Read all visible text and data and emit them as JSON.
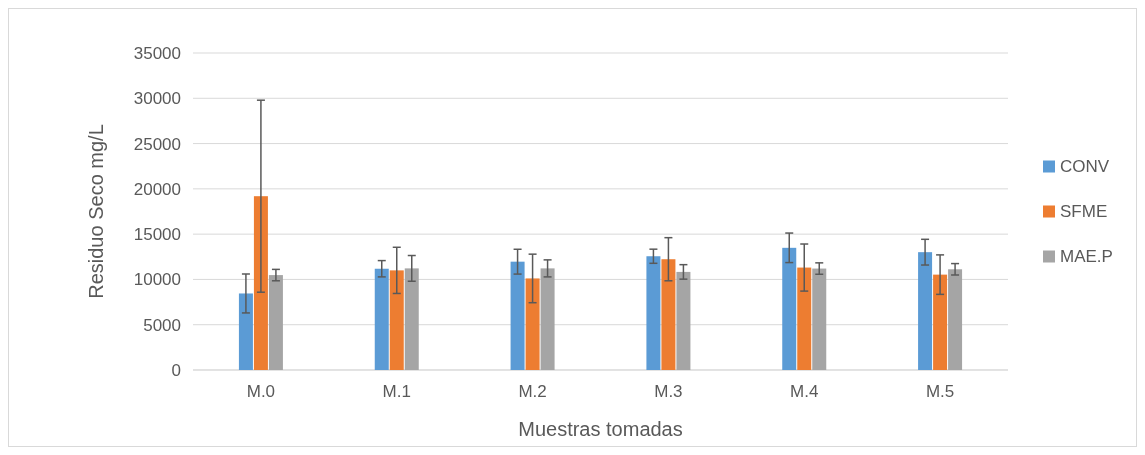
{
  "chart_data": {
    "type": "bar",
    "xlabel": "Muestras tomadas",
    "ylabel": "Residuo Seco mg/L",
    "categories": [
      "M.0",
      "M.1",
      "M.2",
      "M.3",
      "M.4",
      "M.5"
    ],
    "series": [
      {
        "name": "CONV",
        "color": "#5b9bd5",
        "values": [
          8450,
          11180,
          11960,
          12560,
          13490,
          13010
        ],
        "errors": [
          2150,
          900,
          1370,
          780,
          1630,
          1420
        ]
      },
      {
        "name": "SFME",
        "color": "#ed7d31",
        "values": [
          19190,
          11000,
          10110,
          12230,
          11310,
          10530
        ],
        "errors": [
          10600,
          2550,
          2680,
          2380,
          2600,
          2180
        ]
      },
      {
        "name": "MAE.P",
        "color": "#a5a5a5",
        "values": [
          10480,
          11220,
          11220,
          10830,
          11200,
          11120
        ],
        "errors": [
          630,
          1420,
          940,
          800,
          630,
          630
        ]
      }
    ],
    "ylim": [
      0,
      35000
    ],
    "yticks": [
      0,
      5000,
      10000,
      15000,
      20000,
      25000,
      30000,
      35000
    ],
    "grid": "y",
    "legend": "right"
  }
}
